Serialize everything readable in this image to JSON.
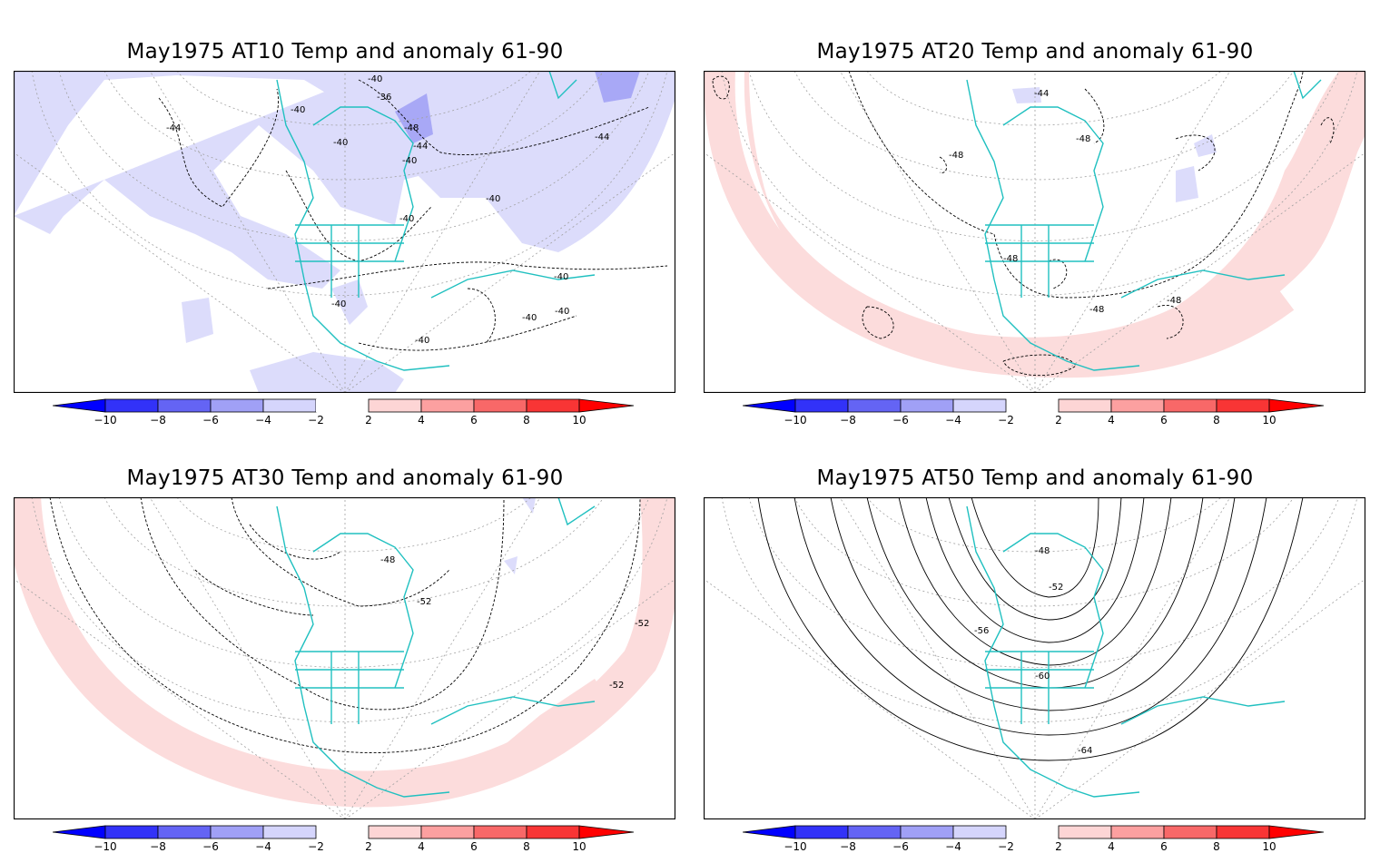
{
  "colorbar": {
    "ticks": [
      "−10",
      "−8",
      "−6",
      "−4",
      "−2",
      "2",
      "4",
      "6",
      "8",
      "10"
    ],
    "colors": {
      "neg4": "#0000ff",
      "neg3": "#5050f0",
      "neg2": "#8c8cff",
      "neg1": "#d5d5fc",
      "zero": "#ffffff",
      "pos1": "#fdd5d5",
      "pos2": "#fca0a0",
      "pos3": "#f86868",
      "pos4": "#f83535",
      "endNeg": "#0000ff",
      "endPos": "#ff0000"
    }
  },
  "colors": {
    "coast": "#20c0c0",
    "contour": "#000000",
    "grid": "#a0a0a0",
    "anomNeg": "#dcdcfb",
    "anomNeg2": "#a8a8f6",
    "anomPos": "#fcdcdc"
  },
  "panels": [
    {
      "id": "at10",
      "title": "May1975 AT10 Temp and anomaly 61-90",
      "labels": [
        "-44",
        "-40",
        "-36",
        "-40",
        "-40",
        "-48",
        "-44",
        "-40",
        "-44",
        "-40",
        "-40",
        "-40",
        "-40",
        "-40",
        "-40",
        "-40"
      ]
    },
    {
      "id": "at20",
      "title": "May1975 AT20 Temp and anomaly 61-90",
      "labels": [
        "-44",
        "-48",
        "-48",
        "-48",
        "-48",
        "-48"
      ]
    },
    {
      "id": "at30",
      "title": "May1975 AT30 Temp and anomaly 61-90",
      "labels": [
        "-48",
        "-52",
        "-52",
        "-52"
      ]
    },
    {
      "id": "at50",
      "title": "May1975 AT50 Temp and anomaly 61-90",
      "labels": [
        "-48",
        "-52",
        "-56",
        "-60",
        "-64"
      ]
    }
  ]
}
